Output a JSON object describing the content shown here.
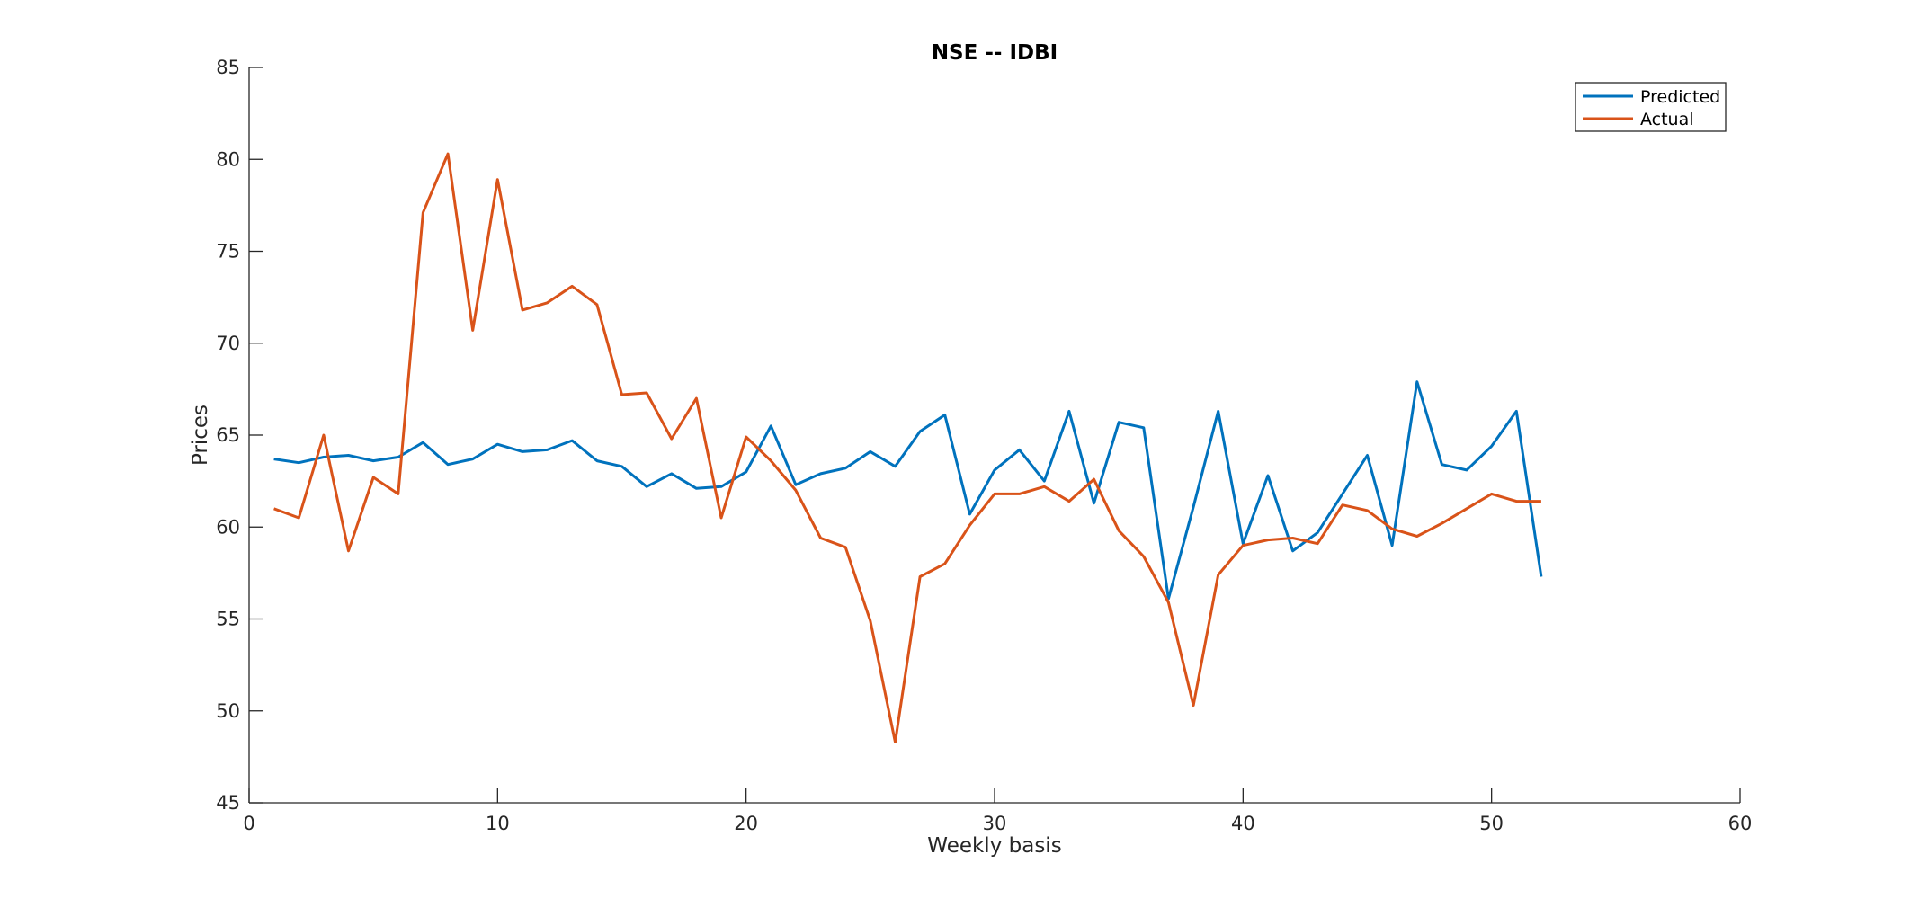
{
  "chart_data": {
    "type": "line",
    "title": "NSE -- IDBI",
    "xlabel": "Weekly basis",
    "ylabel": "Prices",
    "xlim": [
      0,
      60
    ],
    "ylim": [
      45,
      85
    ],
    "xticks": [
      0,
      10,
      20,
      30,
      40,
      50,
      60
    ],
    "yticks": [
      45,
      50,
      55,
      60,
      65,
      70,
      75,
      80,
      85
    ],
    "grid": false,
    "legend_position": "top-right",
    "x": [
      1,
      2,
      3,
      4,
      5,
      6,
      7,
      8,
      9,
      10,
      11,
      12,
      13,
      14,
      15,
      16,
      17,
      18,
      19,
      20,
      21,
      22,
      23,
      24,
      25,
      26,
      27,
      28,
      29,
      30,
      31,
      32,
      33,
      34,
      35,
      36,
      37,
      38,
      39,
      40,
      41,
      42,
      43,
      44,
      45,
      46,
      47,
      48,
      49,
      50,
      51,
      52
    ],
    "series": [
      {
        "name": "Predicted",
        "color": "#0072BD",
        "values": [
          63.7,
          63.5,
          63.8,
          63.9,
          63.6,
          63.8,
          64.6,
          63.4,
          63.7,
          64.5,
          64.1,
          64.2,
          64.7,
          63.6,
          63.3,
          62.2,
          62.9,
          62.1,
          62.2,
          63.0,
          65.5,
          62.3,
          62.9,
          63.2,
          64.1,
          63.3,
          65.2,
          66.1,
          60.7,
          63.1,
          64.2,
          62.5,
          66.3,
          61.3,
          65.7,
          65.4,
          56.1,
          61.1,
          66.3,
          59.1,
          62.8,
          58.7,
          59.7,
          61.8,
          63.9,
          59.0,
          67.9,
          63.4,
          63.1,
          64.4,
          66.3,
          57.3
        ]
      },
      {
        "name": "Actual",
        "color": "#D95319",
        "values": [
          61.0,
          60.5,
          65.0,
          58.7,
          62.7,
          61.8,
          77.1,
          80.3,
          70.7,
          78.9,
          71.8,
          72.2,
          73.1,
          72.1,
          67.2,
          67.3,
          64.8,
          67.0,
          60.5,
          64.9,
          63.6,
          62.0,
          59.4,
          58.9,
          54.9,
          48.3,
          57.3,
          58.0,
          60.1,
          61.8,
          61.8,
          62.2,
          61.4,
          62.6,
          59.8,
          58.4,
          55.9,
          50.3,
          57.4,
          59.0,
          59.3,
          59.4,
          59.1,
          61.2,
          60.9,
          59.9,
          59.5,
          60.2,
          61.0,
          61.8,
          61.4,
          61.4
        ]
      }
    ]
  }
}
